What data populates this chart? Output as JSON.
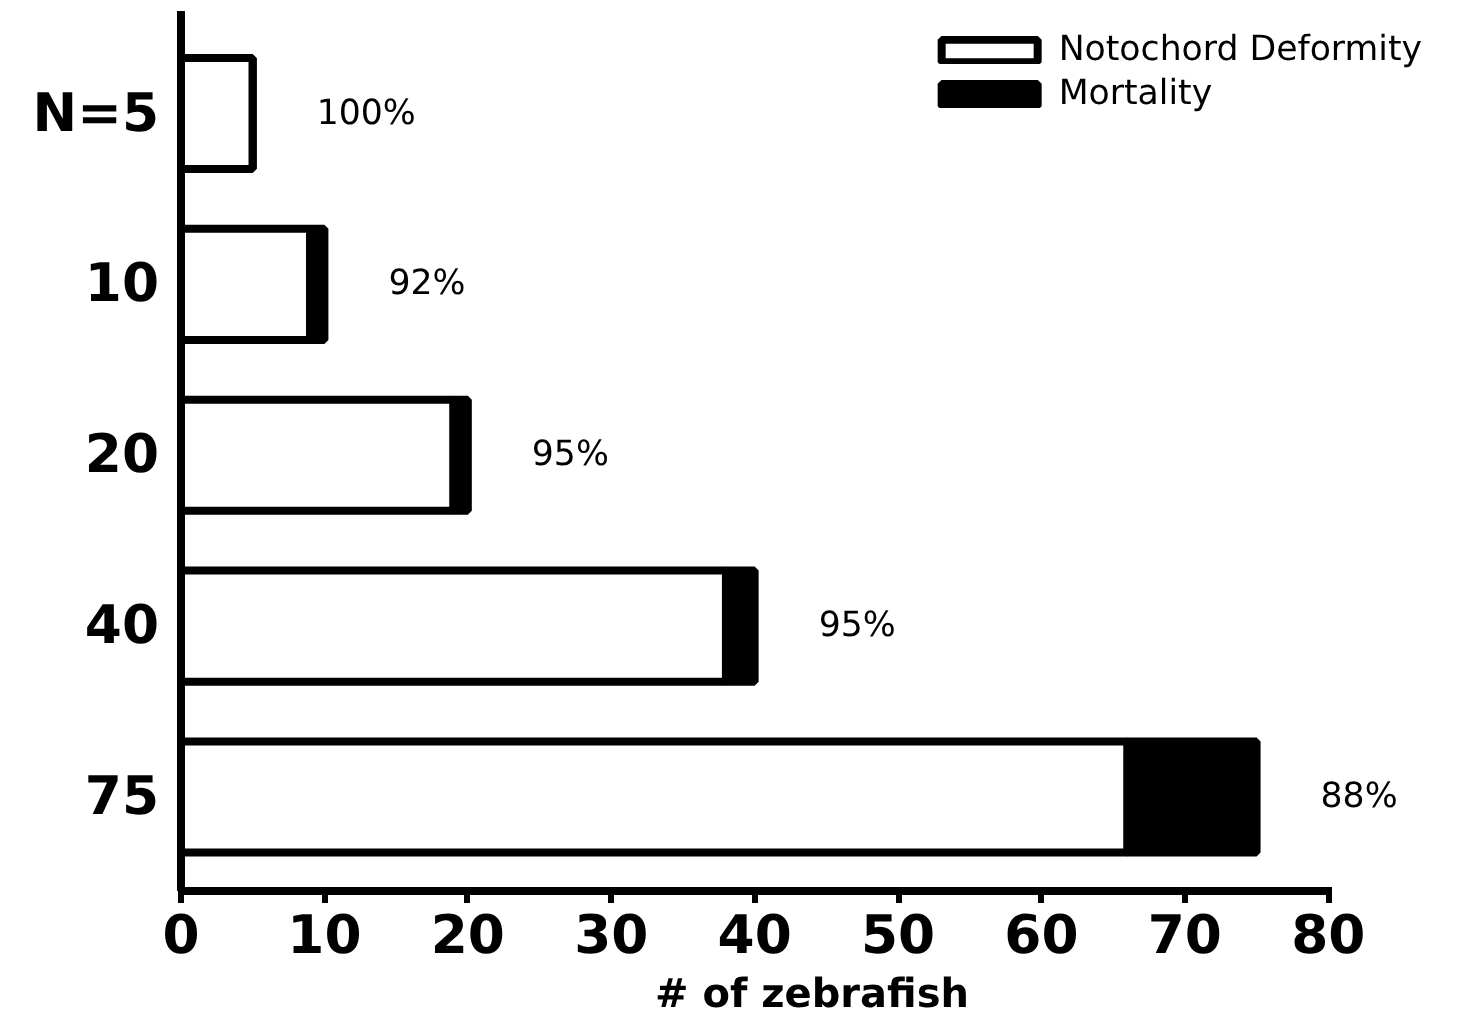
{
  "chart_data": {
    "type": "bar",
    "orientation": "horizontal",
    "stacked": true,
    "xlabel": "# of zebrafish",
    "categories": [
      "N=5",
      "10",
      "20",
      "40",
      "75"
    ],
    "series": [
      {
        "name": "Notochord Deformity",
        "color": "#ffffff",
        "values": [
          5,
          9,
          19,
          38,
          66
        ]
      },
      {
        "name": "Mortality",
        "color": "#000000",
        "values": [
          0,
          1,
          1,
          2,
          9
        ]
      }
    ],
    "annotations": [
      {
        "text": "100%",
        "x": 5,
        "y": "N=5"
      },
      {
        "text": "92%",
        "x": 10,
        "y": "10"
      },
      {
        "text": "95%",
        "x": 20,
        "y": "20"
      },
      {
        "text": "95%",
        "x": 40,
        "y": "40"
      },
      {
        "text": "88%",
        "x": 75,
        "y": "75"
      }
    ],
    "xlim": [
      0,
      80
    ],
    "xticks": [
      0,
      10,
      20,
      30,
      40,
      50,
      60,
      70,
      80
    ],
    "grid": false,
    "legend": "top right"
  }
}
